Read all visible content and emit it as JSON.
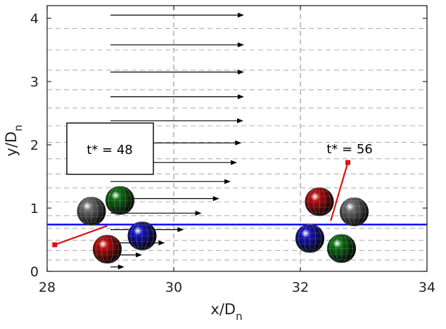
{
  "chart_data": {
    "type": "scatter",
    "xlabel": "x/D",
    "xlabel_sub": "n",
    "ylabel": "y/D",
    "ylabel_sub": "n",
    "xlim": [
      28,
      34
    ],
    "ylim": [
      0,
      4.2
    ],
    "xticks": [
      "28",
      "30",
      "32",
      "34"
    ],
    "yticks": [
      "0",
      "1",
      "2",
      "3",
      "4"
    ],
    "grid": {
      "vertical_dashed_x": [
        30,
        32
      ],
      "horizontal_dashed_y": [
        0.18,
        0.33,
        0.49,
        0.68,
        0.88,
        1.1,
        1.32,
        1.54,
        1.78,
        2.04,
        2.3,
        2.58,
        2.87,
        3.18,
        3.5,
        3.84
      ]
    },
    "reference_line": {
      "y": 0.74,
      "color": "#0000ff"
    },
    "velocity_arrows": [
      {
        "y": 0.07,
        "u": 0.22
      },
      {
        "y": 0.26,
        "u": 0.5
      },
      {
        "y": 0.45,
        "u": 0.86
      },
      {
        "y": 0.66,
        "u": 1.16
      },
      {
        "y": 0.92,
        "u": 1.44
      },
      {
        "y": 1.15,
        "u": 1.72
      },
      {
        "y": 1.42,
        "u": 1.9
      },
      {
        "y": 1.72,
        "u": 2.0
      },
      {
        "y": 2.03,
        "u": 2.07
      },
      {
        "y": 2.38,
        "u": 2.1
      },
      {
        "y": 2.76,
        "u": 2.11
      },
      {
        "y": 3.15,
        "u": 2.11
      },
      {
        "y": 3.58,
        "u": 2.11
      },
      {
        "y": 4.05,
        "u": 2.11
      }
    ],
    "velocity_arrow_x0": 29.0,
    "snapshots": [
      {
        "label": "t* = 48",
        "boxed": true,
        "spheres": [
          {
            "x": 28.7,
            "y": 0.95,
            "color": "#6a6a6a"
          },
          {
            "x": 29.15,
            "y": 1.12,
            "color": "#0e6e12"
          },
          {
            "x": 29.5,
            "y": 0.56,
            "color": "#1414b4"
          },
          {
            "x": 28.95,
            "y": 0.35,
            "color": "#b40c0c"
          }
        ],
        "marker_line": {
          "x": [
            28.12,
            28.95
          ],
          "y": [
            0.42,
            0.72
          ],
          "color": "#e01010"
        }
      },
      {
        "label": "t* = 56",
        "boxed": false,
        "spheres": [
          {
            "x": 32.3,
            "y": 1.1,
            "color": "#b40c0c"
          },
          {
            "x": 32.85,
            "y": 0.94,
            "color": "#6a6a6a"
          },
          {
            "x": 32.15,
            "y": 0.52,
            "color": "#1414b4"
          },
          {
            "x": 32.65,
            "y": 0.36,
            "color": "#0e6e12"
          }
        ],
        "marker_line": {
          "x": [
            32.48,
            32.75
          ],
          "y": [
            0.8,
            1.72
          ],
          "color": "#e01010"
        }
      }
    ],
    "sphere_radius": 0.3
  }
}
